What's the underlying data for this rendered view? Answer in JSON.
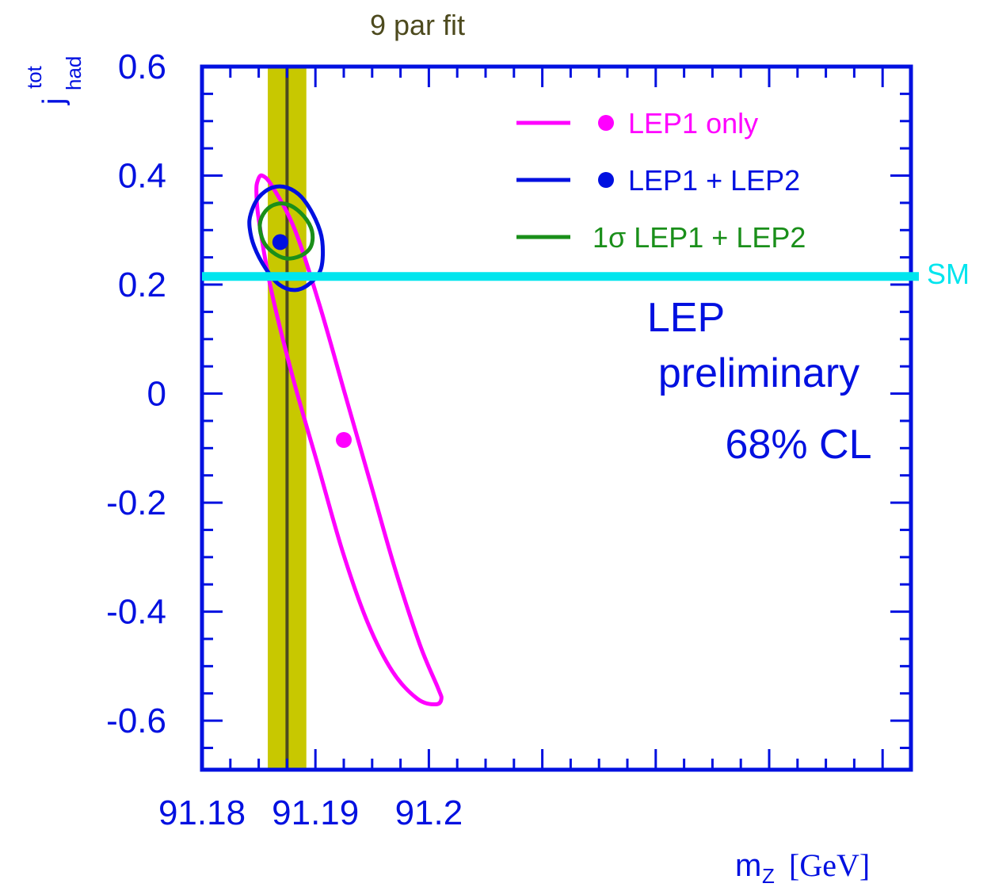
{
  "chart_data": {
    "type": "contour",
    "title": "",
    "top_label": "9 par fit",
    "xlabel": {
      "main": "m",
      "sub": "Z",
      "unit": "[GeV]"
    },
    "ylabel": {
      "main": "j",
      "sub": "had",
      "sup": "tot"
    },
    "xlim": [
      91.18,
      91.2425
    ],
    "ylim": [
      -0.69,
      0.6
    ],
    "x_ticks": [
      91.18,
      91.19,
      91.2
    ],
    "x_tick_labels": [
      "91.18",
      "91.19",
      "91.2"
    ],
    "y_ticks": [
      0.6,
      0.4,
      0.2,
      0,
      -0.2,
      -0.4,
      -0.6
    ],
    "y_tick_labels": [
      "0.6",
      "0.4",
      "0.2",
      "0",
      "-0.2",
      "-0.4",
      "-0.6"
    ],
    "band": {
      "label": "9 par fit",
      "center": 91.1875,
      "low": 91.1858,
      "high": 91.1892,
      "color": "#c8c800",
      "line_color": "#4d4a1e"
    },
    "sm_line": {
      "label": "SM",
      "y": 0.215,
      "color": "#00e5ee"
    },
    "series": [
      {
        "name": "LEP1 only",
        "color": "#ff00ff",
        "point": {
          "x": 91.1925,
          "y": -0.085
        },
        "contour": [
          [
            91.1849,
            0.39
          ],
          [
            91.1853,
            0.4
          ],
          [
            91.1862,
            0.38
          ],
          [
            91.1882,
            0.3
          ],
          [
            91.1904,
            0.16
          ],
          [
            91.1926,
            0.0
          ],
          [
            91.1948,
            -0.16
          ],
          [
            91.197,
            -0.32
          ],
          [
            91.1992,
            -0.46
          ],
          [
            91.2008,
            -0.54
          ],
          [
            91.2011,
            -0.56
          ],
          [
            91.2006,
            -0.57
          ],
          [
            91.199,
            -0.56
          ],
          [
            91.1968,
            -0.51
          ],
          [
            91.1946,
            -0.42
          ],
          [
            91.1924,
            -0.29
          ],
          [
            91.1902,
            -0.13
          ],
          [
            91.188,
            0.03
          ],
          [
            91.1861,
            0.19
          ],
          [
            91.185,
            0.32
          ],
          [
            91.1848,
            0.37
          ]
        ]
      },
      {
        "name": "LEP1 + LEP2",
        "color": "#0010e0",
        "point": {
          "x": 91.1869,
          "y": 0.278
        },
        "contour": [
          [
            91.1843,
            0.33
          ],
          [
            91.185,
            0.36
          ],
          [
            91.1862,
            0.378
          ],
          [
            91.1875,
            0.378
          ],
          [
            91.1888,
            0.36
          ],
          [
            91.19,
            0.32
          ],
          [
            91.1906,
            0.28
          ],
          [
            91.1905,
            0.23
          ],
          [
            91.1895,
            0.202
          ],
          [
            91.1882,
            0.19
          ],
          [
            91.1868,
            0.2
          ],
          [
            91.1856,
            0.23
          ],
          [
            91.1846,
            0.27
          ],
          [
            91.1842,
            0.305
          ]
        ]
      },
      {
        "name": "1σ LEP1 + LEP2",
        "color": "#1a8f1a",
        "point": null,
        "contour": [
          [
            91.1851,
            0.31
          ],
          [
            91.1856,
            0.335
          ],
          [
            91.1866,
            0.348
          ],
          [
            91.1878,
            0.345
          ],
          [
            91.189,
            0.325
          ],
          [
            91.1897,
            0.298
          ],
          [
            91.1896,
            0.27
          ],
          [
            91.1887,
            0.253
          ],
          [
            91.1874,
            0.248
          ],
          [
            91.1862,
            0.26
          ],
          [
            91.1854,
            0.28
          ]
        ]
      }
    ],
    "annotations": [
      "LEP",
      "preliminary",
      "68% CL"
    ],
    "legend_position": "top-right",
    "grid": false
  }
}
